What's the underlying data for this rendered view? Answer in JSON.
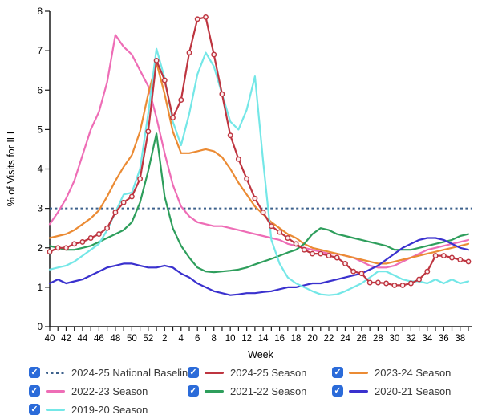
{
  "chart_data": {
    "type": "line",
    "x_label": "Week",
    "y_label": "% of Visits for ILI",
    "ylim": [
      0,
      8
    ],
    "y_ticks": [
      0,
      1,
      2,
      3,
      4,
      5,
      6,
      7,
      8
    ],
    "x": [
      "40",
      "41",
      "42",
      "43",
      "44",
      "45",
      "46",
      "47",
      "48",
      "49",
      "50",
      "51",
      "52",
      "1",
      "2",
      "3",
      "4",
      "5",
      "6",
      "7",
      "8",
      "9",
      "10",
      "11",
      "12",
      "13",
      "14",
      "15",
      "16",
      "17",
      "18",
      "19",
      "20",
      "21",
      "22",
      "23",
      "24",
      "25",
      "26",
      "27",
      "28",
      "29",
      "30",
      "31",
      "32",
      "33",
      "34",
      "35",
      "36",
      "37",
      "38",
      "39"
    ],
    "x_label_every": 2,
    "grid": false,
    "legend_position": "bottom",
    "baseline": {
      "label": "2024-25 National Baseline",
      "value": 3.0,
      "color": "#3D618C",
      "style": "dotted"
    },
    "series": [
      {
        "name": "2022-23 Season",
        "color": "#EE6DB6",
        "marker": false,
        "values": [
          2.6,
          2.9,
          3.25,
          3.7,
          4.35,
          5.0,
          5.45,
          6.2,
          7.4,
          7.1,
          6.9,
          6.5,
          6.1,
          5.3,
          4.4,
          3.6,
          3.05,
          2.8,
          2.65,
          2.6,
          2.55,
          2.55,
          2.5,
          2.45,
          2.4,
          2.35,
          2.3,
          2.25,
          2.2,
          2.1,
          2.05,
          2.0,
          1.95,
          1.9,
          1.85,
          1.85,
          1.8,
          1.75,
          1.65,
          1.55,
          1.5,
          1.5,
          1.55,
          1.65,
          1.75,
          1.85,
          1.95,
          2.0,
          2.05,
          2.1,
          2.15,
          2.2
        ]
      },
      {
        "name": "2023-24 Season",
        "color": "#EB8B34",
        "marker": false,
        "values": [
          2.25,
          2.3,
          2.35,
          2.45,
          2.6,
          2.75,
          2.95,
          3.3,
          3.7,
          4.05,
          4.35,
          4.95,
          5.9,
          6.7,
          5.9,
          4.95,
          4.4,
          4.4,
          4.45,
          4.5,
          4.45,
          4.3,
          4.0,
          3.65,
          3.35,
          3.05,
          2.85,
          2.65,
          2.5,
          2.35,
          2.25,
          2.1,
          2.0,
          1.95,
          1.9,
          1.85,
          1.8,
          1.75,
          1.7,
          1.65,
          1.6,
          1.6,
          1.65,
          1.7,
          1.75,
          1.8,
          1.85,
          1.9,
          1.95,
          2.0,
          2.05,
          2.1
        ]
      },
      {
        "name": "2021-22 Season",
        "color": "#2E9E5C",
        "marker": false,
        "values": [
          2.05,
          2.0,
          1.95,
          1.95,
          2.0,
          2.05,
          2.15,
          2.25,
          2.35,
          2.45,
          2.65,
          3.15,
          3.95,
          4.9,
          3.3,
          2.5,
          2.05,
          1.75,
          1.5,
          1.4,
          1.38,
          1.4,
          1.42,
          1.45,
          1.5,
          1.58,
          1.65,
          1.72,
          1.8,
          1.88,
          1.95,
          2.1,
          2.35,
          2.5,
          2.45,
          2.35,
          2.3,
          2.25,
          2.2,
          2.15,
          2.1,
          2.05,
          1.95,
          1.95,
          1.95,
          2.0,
          2.05,
          2.1,
          2.15,
          2.2,
          2.3,
          2.35
        ]
      },
      {
        "name": "2020-21 Season",
        "color": "#3A31CE",
        "marker": false,
        "values": [
          1.1,
          1.2,
          1.1,
          1.15,
          1.2,
          1.3,
          1.4,
          1.5,
          1.55,
          1.6,
          1.6,
          1.55,
          1.5,
          1.5,
          1.55,
          1.5,
          1.35,
          1.25,
          1.1,
          1.0,
          0.9,
          0.85,
          0.8,
          0.82,
          0.85,
          0.85,
          0.88,
          0.9,
          0.95,
          1.0,
          1.0,
          1.05,
          1.1,
          1.1,
          1.15,
          1.2,
          1.25,
          1.3,
          1.35,
          1.45,
          1.55,
          1.7,
          1.85,
          2.0,
          2.1,
          2.2,
          2.25,
          2.25,
          2.2,
          2.1,
          2.0,
          1.95
        ]
      },
      {
        "name": "2019-20 Season",
        "color": "#74E7E7",
        "marker": false,
        "values": [
          1.45,
          1.5,
          1.55,
          1.65,
          1.8,
          1.95,
          2.1,
          2.45,
          2.9,
          3.35,
          3.4,
          4.0,
          5.4,
          7.05,
          6.3,
          5.2,
          4.6,
          5.4,
          6.4,
          6.95,
          6.6,
          5.9,
          5.2,
          5.0,
          5.5,
          6.35,
          4.2,
          2.2,
          1.6,
          1.25,
          1.1,
          1.0,
          0.9,
          0.82,
          0.8,
          0.82,
          0.9,
          1.0,
          1.1,
          1.25,
          1.4,
          1.4,
          1.3,
          1.2,
          1.15,
          1.15,
          1.1,
          1.2,
          1.1,
          1.2,
          1.1,
          1.15
        ]
      },
      {
        "name": "2024-25 Season",
        "color": "#BE3540",
        "marker": true,
        "marker_fill": "#FBEFEF",
        "values": [
          1.9,
          2.0,
          2.0,
          2.1,
          2.15,
          2.25,
          2.35,
          2.5,
          2.9,
          3.15,
          3.3,
          3.75,
          4.95,
          6.75,
          6.25,
          5.3,
          5.75,
          6.95,
          7.8,
          7.85,
          6.9,
          5.9,
          4.85,
          4.25,
          3.75,
          3.25,
          2.9,
          2.55,
          2.4,
          2.25,
          2.1,
          1.95,
          1.85,
          1.85,
          1.8,
          1.75,
          1.6,
          1.4,
          1.35,
          1.12,
          1.12,
          1.1,
          1.05,
          1.05,
          1.1,
          1.2,
          1.4,
          1.8,
          1.8,
          1.75,
          1.7,
          1.65
        ]
      }
    ]
  },
  "legend": {
    "checkbox_color": "#2B6BD9",
    "check_glyph": "✓",
    "items": [
      {
        "label": "2024-25 National Baseline",
        "color": "#3D618C",
        "style": "dotted",
        "checked": true
      },
      {
        "label": "2024-25 Season",
        "color": "#BE3540",
        "style": "solid",
        "checked": true
      },
      {
        "label": "2023-24 Season",
        "color": "#EB8B34",
        "style": "solid",
        "checked": true
      },
      {
        "label": "2022-23 Season",
        "color": "#EE6DB6",
        "style": "solid",
        "checked": true
      },
      {
        "label": "2021-22 Season",
        "color": "#2E9E5C",
        "style": "solid",
        "checked": true
      },
      {
        "label": "2020-21 Season",
        "color": "#3A31CE",
        "style": "solid",
        "checked": true
      },
      {
        "label": "2019-20 Season",
        "color": "#74E7E7",
        "style": "solid",
        "checked": true
      }
    ]
  }
}
